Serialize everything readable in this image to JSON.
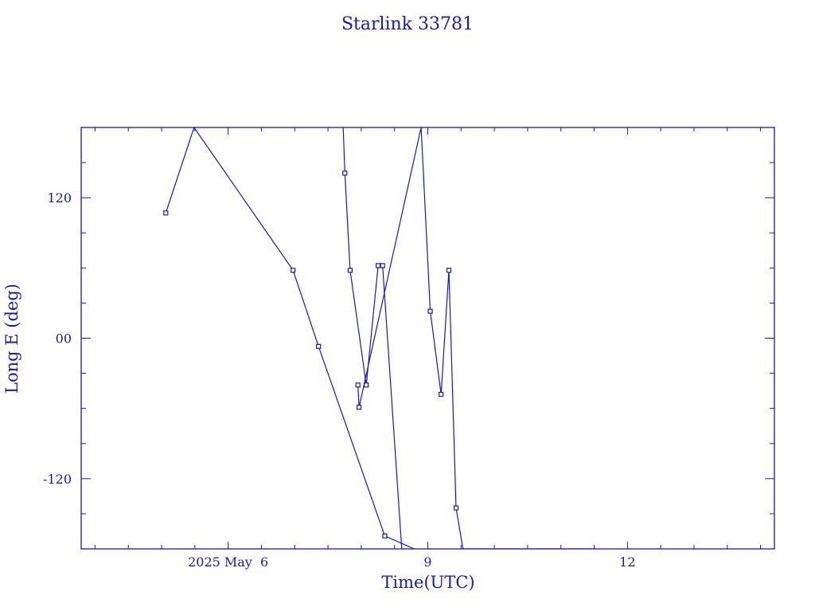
{
  "chart_data": {
    "type": "line",
    "title": "Starlink 33781",
    "xlabel": "Time(UTC)",
    "ylabel": "Long E (deg)",
    "x_tick_labels": [
      {
        "x": 0,
        "label": "2025 May  6"
      },
      {
        "x": 72,
        "label": "9"
      },
      {
        "x": 144,
        "label": "12"
      }
    ],
    "y_tick_labels": [
      {
        "y": 120,
        "label": "120"
      },
      {
        "y": 0,
        "label": "00"
      },
      {
        "y": -120,
        "label": "-120"
      }
    ],
    "xlim": [
      -53,
      197
    ],
    "ylim": [
      -180,
      180
    ],
    "x_unit": "hours since 2025 May 6 00:00 UTC",
    "color": "#1a1aa6",
    "series": [
      {
        "x": [
          -22.5,
          -12.3,
          23.4,
          32.6,
          56.5,
          67.1
        ],
        "y": [
          107.0,
          180.0,
          58.0,
          -7.0,
          -169.0,
          -180.0
        ]
      },
      {
        "x": [
          41.5,
          42.1,
          44.0,
          49.8,
          54.1,
          55.7,
          62.6
        ],
        "y": [
          180.0,
          141.0,
          58.0,
          -40.0,
          62.0,
          62.0,
          -180.0
        ]
      },
      {
        "x": [
          46.8,
          47.2,
          69.6,
          72.9,
          76.8,
          79.6,
          82.2,
          84.7,
          86.9,
          102.0,
          126.7,
          132.6
        ],
        "y": [
          -40.0,
          -59.0,
          180.0,
          23.0,
          -48.0,
          58.0,
          -145.0,
          -180.0,
          -180.0,
          -180.0,
          -180.0,
          -180.0
        ]
      }
    ]
  }
}
